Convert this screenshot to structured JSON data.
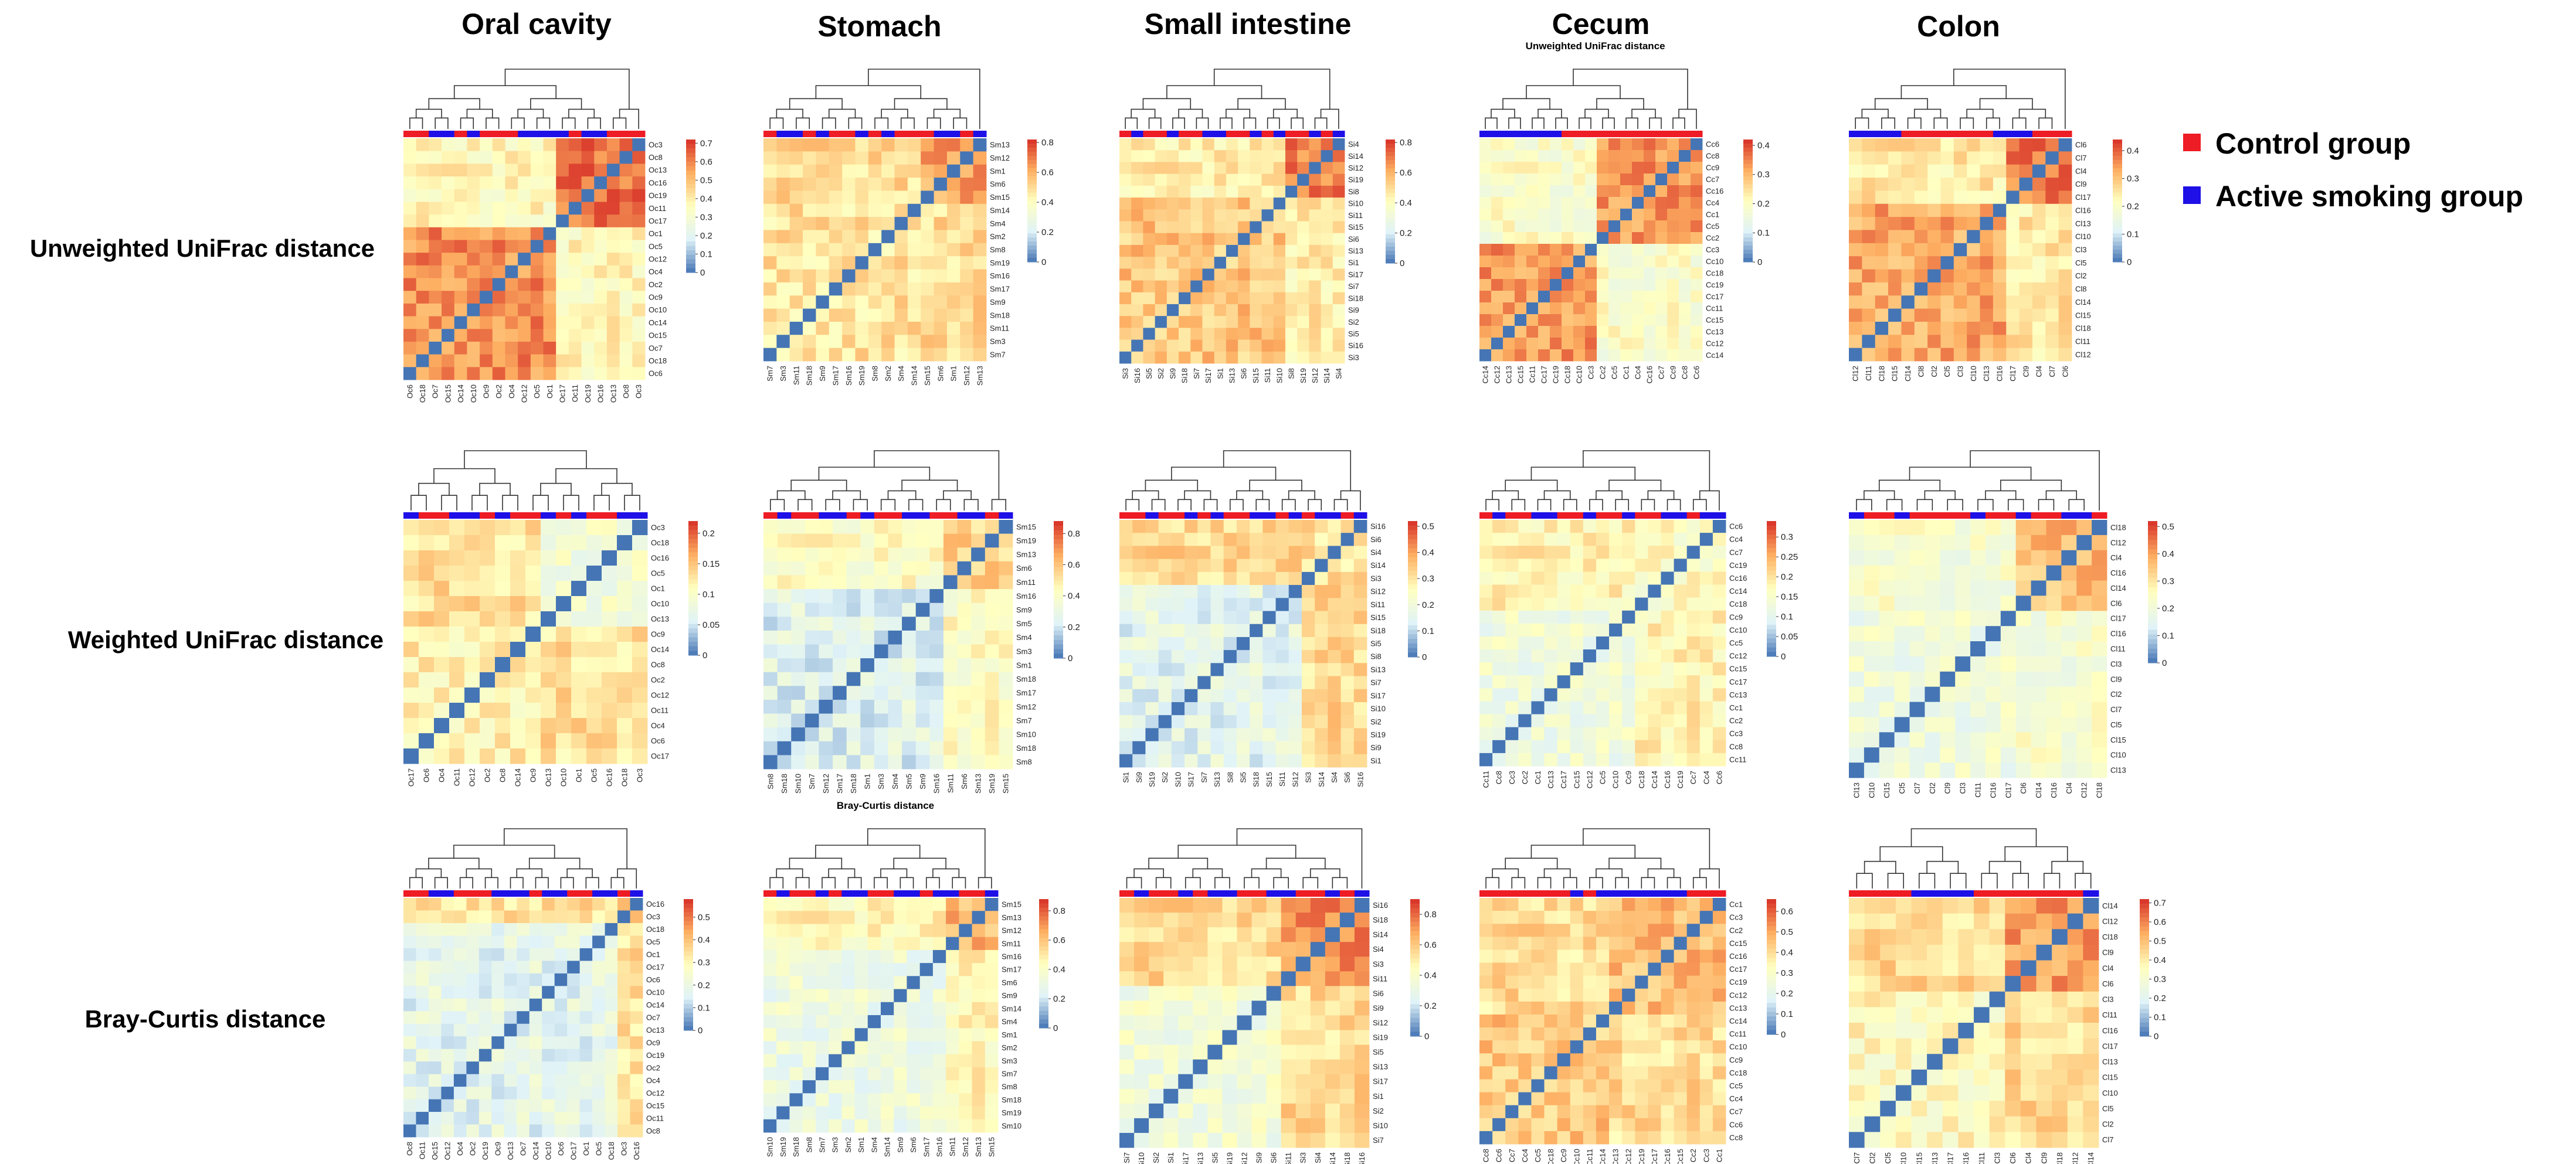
{
  "column_titles": [
    "Oral cavity",
    "Stomach",
    "Small intestine",
    "Cecum",
    "Colon"
  ],
  "row_titles": [
    "Unweighted UniFrac distance",
    "Weighted UniFrac distance",
    "Bray-Curtis distance"
  ],
  "legend": {
    "items": [
      {
        "label": "Control group",
        "color": "#ee1c24"
      },
      {
        "label": "Active smoking group",
        "color": "#1e10e6"
      }
    ]
  },
  "colormap": {
    "low": "#4575b4",
    "mid_low": "#e0f3f8",
    "mid": "#ffffbf",
    "mid_high": "#fdae61",
    "high": "#d73027"
  },
  "chart_data": [
    {
      "type": "heatmap",
      "organ": "Oral cavity",
      "metric": "Unweighted UniFrac distance",
      "subtitle": "",
      "row_labels": [
        "Oc3",
        "Oc8",
        "Oc13",
        "Oc16",
        "Oc19",
        "Oc11",
        "Oc17",
        "Oc1",
        "Oc5",
        "Oc12",
        "Oc4",
        "Oc2",
        "Oc9",
        "Oc10",
        "Oc14",
        "Oc15",
        "Oc7",
        "Oc18",
        "Oc6"
      ],
      "col_labels": [
        "Oc6",
        "Oc18",
        "Oc7",
        "Oc15",
        "Oc14",
        "Oc10",
        "Oc9",
        "Oc2",
        "Oc4",
        "Oc12",
        "Oc5",
        "Oc1",
        "Oc17",
        "Oc11",
        "Oc19",
        "Oc16",
        "Oc13",
        "Oc8",
        "Oc3"
      ],
      "groups": "RRBBRBRRRBBBBRBBRRR",
      "colorbar": {
        "ticks": [
          0,
          0.1,
          0.2,
          0.3,
          0.4,
          0.5,
          0.6,
          0.7
        ],
        "tick_labels": [
          "0",
          "0.1",
          "0.2",
          "0.3",
          "0.4",
          "0.5",
          "0.6",
          "0.7"
        ]
      },
      "value_range": [
        0,
        0.72
      ],
      "block_split": 12,
      "within_a": 0.58,
      "within_b": 0.62,
      "between": 0.37
    },
    {
      "type": "heatmap",
      "organ": "Stomach",
      "metric": "Unweighted UniFrac distance",
      "subtitle": "",
      "row_labels": [
        "Sm13",
        "Sm12",
        "Sm1",
        "Sm6",
        "Sm15",
        "Sm14",
        "Sm4",
        "Sm2",
        "Sm8",
        "Sm19",
        "Sm16",
        "Sm17",
        "Sm9",
        "Sm18",
        "Sm11",
        "Sm3",
        "Sm7"
      ],
      "col_labels": [
        "Sm7",
        "Sm3",
        "Sm11",
        "Sm18",
        "Sm9",
        "Sm17",
        "Sm16",
        "Sm19",
        "Sm8",
        "Sm2",
        "Sm4",
        "Sm14",
        "Sm15",
        "Sm6",
        "Sm1",
        "Sm12",
        "Sm13"
      ],
      "groups": "RBBRBRRBRBRRRBBRB",
      "colorbar": {
        "ticks": [
          0,
          0.2,
          0.4,
          0.6,
          0.8
        ],
        "tick_labels": [
          "0",
          "0.2",
          "0.4",
          "0.6",
          "0.8"
        ]
      },
      "value_range": [
        0,
        0.82
      ],
      "block_split": 12,
      "within_a": 0.48,
      "within_b": 0.62,
      "between": 0.5
    },
    {
      "type": "heatmap",
      "organ": "Small intestine",
      "metric": "Unweighted UniFrac distance",
      "subtitle": "",
      "row_labels": [
        "Si4",
        "Si14",
        "Si12",
        "Si19",
        "Si8",
        "Si10",
        "Si11",
        "Si15",
        "Si6",
        "Si13",
        "Si1",
        "Si17",
        "Si7",
        "Si18",
        "Si9",
        "Si2",
        "Si5",
        "Si16",
        "Si3"
      ],
      "col_labels": [
        "Si3",
        "Si16",
        "Si5",
        "Si2",
        "Si9",
        "Si18",
        "Si7",
        "Si17",
        "Si1",
        "Si13",
        "Si6",
        "Si15",
        "Si11",
        "Si10",
        "Si8",
        "Si19",
        "Si12",
        "Si14",
        "Si4"
      ],
      "groups": "RBRRBRRBBRRBRBRRBRB",
      "colorbar": {
        "ticks": [
          0,
          0.2,
          0.4,
          0.6,
          0.8
        ],
        "tick_labels": [
          "0",
          "0.2",
          "0.4",
          "0.6",
          "0.8"
        ]
      },
      "value_range": [
        0,
        0.82
      ],
      "block_split": 14,
      "within_a": 0.55,
      "within_b": 0.68,
      "between": 0.45
    },
    {
      "type": "heatmap",
      "organ": "Cecum",
      "metric": "Unweighted UniFrac distance",
      "subtitle": "Unweighted UniFrac distance",
      "row_labels": [
        "Cc6",
        "Cc8",
        "Cc9",
        "Cc7",
        "Cc16",
        "Cc4",
        "Cc1",
        "Cc5",
        "Cc2",
        "Cc3",
        "Cc10",
        "Cc18",
        "Cc19",
        "Cc17",
        "Cc11",
        "Cc15",
        "Cc13",
        "Cc12",
        "Cc14"
      ],
      "col_labels": [
        "Cc14",
        "Cc12",
        "Cc13",
        "Cc15",
        "Cc11",
        "Cc17",
        "Cc19",
        "Cc18",
        "Cc10",
        "Cc3",
        "Cc2",
        "Cc5",
        "Cc1",
        "Cc4",
        "Cc16",
        "Cc7",
        "Cc9",
        "Cc8",
        "Cc6"
      ],
      "groups": "BBBBBBBRRRRRRRRRRRR",
      "colorbar": {
        "ticks": [
          0,
          0.1,
          0.2,
          0.3,
          0.4
        ],
        "tick_labels": [
          "0",
          "0.1",
          "0.2",
          "0.3",
          "0.4"
        ]
      },
      "value_range": [
        0,
        0.42
      ],
      "block_split": 10,
      "within_a": 0.33,
      "within_b": 0.33,
      "between": 0.19
    },
    {
      "type": "heatmap",
      "organ": "Colon",
      "metric": "Unweighted UniFrac distance",
      "subtitle": "",
      "row_labels": [
        "Cl6",
        "Cl7",
        "Cl4",
        "Cl9",
        "Cl17",
        "Cl16",
        "Cl13",
        "Cl10",
        "Cl3",
        "Cl5",
        "Cl2",
        "Cl8",
        "Cl14",
        "Cl15",
        "Cl18",
        "Cl11",
        "Cl12"
      ],
      "col_labels": [
        "Cl12",
        "Cl11",
        "Cl18",
        "Cl15",
        "Cl14",
        "Cl8",
        "Cl2",
        "Cl5",
        "Cl3",
        "Cl10",
        "Cl13",
        "Cl16",
        "Cl17",
        "Cl9",
        "Cl4",
        "Cl7",
        "Cl6"
      ],
      "groups": "BBBBRRRRRRRBBBRRR",
      "colorbar": {
        "ticks": [
          0,
          0.1,
          0.2,
          0.3,
          0.4
        ],
        "tick_labels": [
          "0",
          "0.1",
          "0.2",
          "0.3",
          "0.4"
        ]
      },
      "value_range": [
        0,
        0.44
      ],
      "block_split": 12,
      "within_a": 0.33,
      "within_b": 0.37,
      "between": 0.25
    },
    {
      "type": "heatmap",
      "organ": "Oral cavity",
      "metric": "Weighted UniFrac distance",
      "subtitle": "",
      "row_labels": [
        "Oc3",
        "Oc18",
        "Oc16",
        "Oc5",
        "Oc1",
        "Oc10",
        "Oc13",
        "Oc9",
        "Oc14",
        "Oc8",
        "Oc2",
        "Oc12",
        "Oc11",
        "Oc4",
        "Oc6",
        "Oc17"
      ],
      "col_labels": [
        "Oc17",
        "Oc6",
        "Oc4",
        "Oc11",
        "Oc12",
        "Oc2",
        "Oc8",
        "Oc14",
        "Oc9",
        "Oc13",
        "Oc10",
        "Oc1",
        "Oc5",
        "Oc16",
        "Oc18",
        "Oc3"
      ],
      "groups": "BRRBBRBRRBRBRRBB",
      "colorbar": {
        "ticks": [
          0,
          0.05,
          0.1,
          0.15,
          0.2
        ],
        "tick_labels": [
          "0",
          "0.05",
          "0.1",
          "0.15",
          "0.2"
        ]
      },
      "value_range": [
        0,
        0.22
      ],
      "block_split": 9,
      "within_a": 0.12,
      "within_b": 0.09,
      "between": 0.13
    },
    {
      "type": "heatmap",
      "organ": "Stomach",
      "metric": "Weighted UniFrac distance",
      "subtitle": "",
      "row_labels": [
        "Sm15",
        "Sm19",
        "Sm13",
        "Sm6",
        "Sm11",
        "Sm16",
        "Sm9",
        "Sm5",
        "Sm4",
        "Sm3",
        "Sm1",
        "Sm18",
        "Sm17",
        "Sm12",
        "Sm7",
        "Sm10",
        "Sm18",
        "Sm8"
      ],
      "col_labels": [
        "Sm8",
        "Sm18",
        "Sm10",
        "Sm7",
        "Sm12",
        "Sm17",
        "Sm18",
        "Sm1",
        "Sm3",
        "Sm4",
        "Sm5",
        "Sm9",
        "Sm16",
        "Sm11",
        "Sm6",
        "Sm13",
        "Sm19",
        "Sm15"
      ],
      "groups": "RBRRBBRBRRBBRRBBRB",
      "colorbar": {
        "ticks": [
          0,
          0.2,
          0.4,
          0.6,
          0.8
        ],
        "tick_labels": [
          "0",
          "0.2",
          "0.4",
          "0.6",
          "0.8"
        ]
      },
      "value_range": [
        0,
        0.88
      ],
      "block_split": 13,
      "within_a": 0.25,
      "within_b": 0.55,
      "between": 0.42
    },
    {
      "type": "heatmap",
      "organ": "Small intestine",
      "metric": "Weighted UniFrac distance",
      "subtitle": "",
      "row_labels": [
        "Si16",
        "Si6",
        "Si4",
        "Si14",
        "Si3",
        "Si12",
        "Si11",
        "Si15",
        "Si18",
        "Si5",
        "Si8",
        "Si13",
        "Si7",
        "Si17",
        "Si10",
        "Si2",
        "Si19",
        "Si9",
        "Si1"
      ],
      "col_labels": [
        "Si1",
        "Si9",
        "Si19",
        "Si2",
        "Si10",
        "Si17",
        "Si7",
        "Si13",
        "Si8",
        "Si5",
        "Si18",
        "Si15",
        "Si11",
        "Si12",
        "Si3",
        "Si14",
        "Si4",
        "Si6",
        "Si16"
      ],
      "groups": "RRBRRBRBRRBBRBRBBRB",
      "colorbar": {
        "ticks": [
          0,
          0.1,
          0.2,
          0.3,
          0.4,
          0.5
        ],
        "tick_labels": [
          "0",
          "0.1",
          "0.2",
          "0.3",
          "0.4",
          "0.5"
        ]
      },
      "value_range": [
        0,
        0.52
      ],
      "block_split": 14,
      "within_a": 0.16,
      "within_b": 0.3,
      "between": 0.32
    },
    {
      "type": "heatmap",
      "organ": "Cecum",
      "metric": "Weighted UniFrac distance",
      "subtitle": "",
      "row_labels": [
        "Cc6",
        "Cc4",
        "Cc7",
        "Cc19",
        "Cc16",
        "Cc14",
        "Cc18",
        "Cc9",
        "Cc10",
        "Cc5",
        "Cc12",
        "Cc15",
        "Cc17",
        "Cc13",
        "Cc1",
        "Cc2",
        "Cc3",
        "Cc8",
        "Cc11"
      ],
      "col_labels": [
        "Cc11",
        "Cc8",
        "Cc3",
        "Cc2",
        "Cc1",
        "Cc13",
        "Cc17",
        "Cc15",
        "Cc12",
        "Cc5",
        "Cc10",
        "Cc9",
        "Cc18",
        "Cc14",
        "Cc16",
        "Cc19",
        "Cc7",
        "Cc4",
        "Cc6"
      ],
      "groups": "RBRRBBRRBRRBRRBBRBB",
      "colorbar": {
        "ticks": [
          0,
          0.05,
          0.1,
          0.15,
          0.2,
          0.25,
          0.3
        ],
        "tick_labels": [
          "0",
          "0.05",
          "0.1",
          "0.15",
          "0.2",
          "0.25",
          "0.3"
        ]
      },
      "value_range": [
        0,
        0.34
      ],
      "block_split": 12,
      "within_a": 0.13,
      "within_b": 0.16,
      "between": 0.18
    },
    {
      "type": "heatmap",
      "organ": "Colon",
      "metric": "Weighted UniFrac distance",
      "subtitle": "",
      "row_labels": [
        "Cl18",
        "Cl12",
        "Cl4",
        "Cl16",
        "Cl14",
        "Cl6",
        "Cl17",
        "Cl16",
        "Cl11",
        "Cl3",
        "Cl9",
        "Cl2",
        "Cl7",
        "Cl5",
        "Cl15",
        "Cl10",
        "Cl13"
      ],
      "col_labels": [
        "Cl13",
        "Cl10",
        "Cl15",
        "Cl5",
        "Cl7",
        "Cl2",
        "Cl9",
        "Cl3",
        "Cl11",
        "Cl16",
        "Cl17",
        "Cl6",
        "Cl14",
        "Cl16",
        "Cl4",
        "Cl12",
        "Cl18"
      ],
      "groups": "BRRBRRRRBRRBRRBBR",
      "colorbar": {
        "ticks": [
          0,
          0.1,
          0.2,
          0.3,
          0.4,
          0.5
        ],
        "tick_labels": [
          "0",
          "0.1",
          "0.2",
          "0.3",
          "0.4",
          "0.5"
        ]
      },
      "value_range": [
        0,
        0.52
      ],
      "block_split": 11,
      "within_a": 0.2,
      "within_b": 0.36,
      "between": 0.22
    },
    {
      "type": "heatmap",
      "organ": "Oral cavity",
      "metric": "Bray-Curtis distance",
      "subtitle": "",
      "row_labels": [
        "Oc16",
        "Oc3",
        "Oc18",
        "Oc5",
        "Oc1",
        "Oc17",
        "Oc6",
        "Oc10",
        "Oc14",
        "Oc7",
        "Oc13",
        "Oc9",
        "Oc19",
        "Oc2",
        "Oc4",
        "Oc12",
        "Oc15",
        "Oc11",
        "Oc8"
      ],
      "col_labels": [
        "Oc8",
        "Oc11",
        "Oc15",
        "Oc12",
        "Oc4",
        "Oc2",
        "Oc19",
        "Oc9",
        "Oc13",
        "Oc7",
        "Oc14",
        "Oc10",
        "Oc6",
        "Oc17",
        "Oc1",
        "Oc5",
        "Oc18",
        "Oc3",
        "Oc16"
      ],
      "groups": "RRBBRRRBBBRBBRRBBRB",
      "colorbar": {
        "ticks": [
          0,
          0.1,
          0.2,
          0.3,
          0.4,
          0.5
        ],
        "tick_labels": [
          "0",
          "0.1",
          "0.2",
          "0.3",
          "0.4",
          "0.5"
        ]
      },
      "value_range": [
        0,
        0.58
      ],
      "block_split": 17,
      "within_a": 0.18,
      "within_b": 0.38,
      "between": 0.34
    },
    {
      "type": "heatmap",
      "organ": "Stomach",
      "metric": "Bray-Curtis distance",
      "subtitle": "Bray-Curtis distance",
      "row_labels": [
        "Sm15",
        "Sm13",
        "Sm12",
        "Sm11",
        "Sm16",
        "Sm17",
        "Sm6",
        "Sm9",
        "Sm14",
        "Sm4",
        "Sm1",
        "Sm2",
        "Sm3",
        "Sm7",
        "Sm8",
        "Sm18",
        "Sm19",
        "Sm10"
      ],
      "col_labels": [
        "Sm10",
        "Sm19",
        "Sm18",
        "Sm8",
        "Sm7",
        "Sm3",
        "Sm2",
        "Sm1",
        "Sm4",
        "Sm14",
        "Sm9",
        "Sm6",
        "Sm17",
        "Sm16",
        "Sm11",
        "Sm12",
        "Sm13",
        "Sm15"
      ],
      "groups": "RBRRBRBBRRBBRBBRRB",
      "colorbar": {
        "ticks": [
          0,
          0.2,
          0.4,
          0.6,
          0.8
        ],
        "tick_labels": [
          "0",
          "0.2",
          "0.4",
          "0.6",
          "0.8"
        ]
      },
      "value_range": [
        0,
        0.88
      ],
      "block_split": 14,
      "within_a": 0.32,
      "within_b": 0.62,
      "between": 0.45
    },
    {
      "type": "heatmap",
      "organ": "Small intestine",
      "metric": "Bray-Curtis distance",
      "subtitle": "",
      "row_labels": [
        "Si16",
        "Si18",
        "Si14",
        "Si4",
        "Si3",
        "Si11",
        "Si6",
        "Si9",
        "Si12",
        "Si19",
        "Si5",
        "Si13",
        "Si17",
        "Si1",
        "Si2",
        "Si10",
        "Si7"
      ],
      "col_labels": [
        "Si7",
        "Si10",
        "Si2",
        "Si1",
        "Si17",
        "Si13",
        "Si5",
        "Si19",
        "Si12",
        "Si9",
        "Si6",
        "Si11",
        "Si3",
        "Si4",
        "Si14",
        "Si18",
        "Si16"
      ],
      "groups": "RBRRBRBBRRBBRRBRB",
      "colorbar": {
        "ticks": [
          0,
          0.2,
          0.4,
          0.6,
          0.8
        ],
        "tick_labels": [
          "0",
          "0.2",
          "0.4",
          "0.6",
          "0.8"
        ]
      },
      "value_range": [
        0,
        0.9
      ],
      "block_split": 11,
      "within_a": 0.36,
      "within_b": 0.72,
      "between": 0.55
    },
    {
      "type": "heatmap",
      "organ": "Cecum",
      "metric": "Bray-Curtis distance",
      "subtitle": "",
      "row_labels": [
        "Cc1",
        "Cc3",
        "Cc2",
        "Cc15",
        "Cc16",
        "Cc17",
        "Cc19",
        "Cc12",
        "Cc13",
        "Cc14",
        "Cc11",
        "Cc10",
        "Cc9",
        "Cc18",
        "Cc5",
        "Cc4",
        "Cc7",
        "Cc6",
        "Cc8"
      ],
      "col_labels": [
        "Cc8",
        "Cc6",
        "Cc7",
        "Cc4",
        "Cc5",
        "Cc18",
        "Cc9",
        "Cc10",
        "Cc11",
        "Cc14",
        "Cc13",
        "Cc12",
        "Cc19",
        "Cc17",
        "Cc16",
        "Cc15",
        "Cc2",
        "Cc3",
        "Cc1"
      ],
      "groups": "RRRRRRRBRBBBBBBBRRR",
      "colorbar": {
        "ticks": [
          0,
          0.1,
          0.2,
          0.3,
          0.4,
          0.5,
          0.6
        ],
        "tick_labels": [
          "0",
          "0.1",
          "0.2",
          "0.3",
          "0.4",
          "0.5",
          "0.6"
        ]
      },
      "value_range": [
        0,
        0.66
      ],
      "block_split": 10,
      "within_a": 0.44,
      "within_b": 0.46,
      "between": 0.4
    },
    {
      "type": "heatmap",
      "organ": "Colon",
      "metric": "Bray-Curtis distance",
      "subtitle": "",
      "row_labels": [
        "Cl14",
        "Cl12",
        "Cl18",
        "Cl9",
        "Cl4",
        "Cl6",
        "Cl3",
        "Cl11",
        "Cl16",
        "Cl17",
        "Cl13",
        "Cl15",
        "Cl10",
        "Cl5",
        "Cl2",
        "Cl7"
      ],
      "col_labels": [
        "Cl7",
        "Cl2",
        "Cl5",
        "Cl10",
        "Cl15",
        "Cl13",
        "Cl17",
        "Cl16",
        "Cl11",
        "Cl3",
        "Cl6",
        "Cl4",
        "Cl9",
        "Cl18",
        "Cl12",
        "Cl14"
      ],
      "groups": "RRRRBBBBRRRRRRRB",
      "colorbar": {
        "ticks": [
          0,
          0.1,
          0.2,
          0.3,
          0.4,
          0.5,
          0.6,
          0.7
        ],
        "tick_labels": [
          "0",
          "0.1",
          "0.2",
          "0.3",
          "0.4",
          "0.5",
          "0.6",
          "0.7"
        ]
      },
      "value_range": [
        0,
        0.72
      ],
      "block_split": 10,
      "within_a": 0.36,
      "within_b": 0.56,
      "between": 0.44
    }
  ]
}
